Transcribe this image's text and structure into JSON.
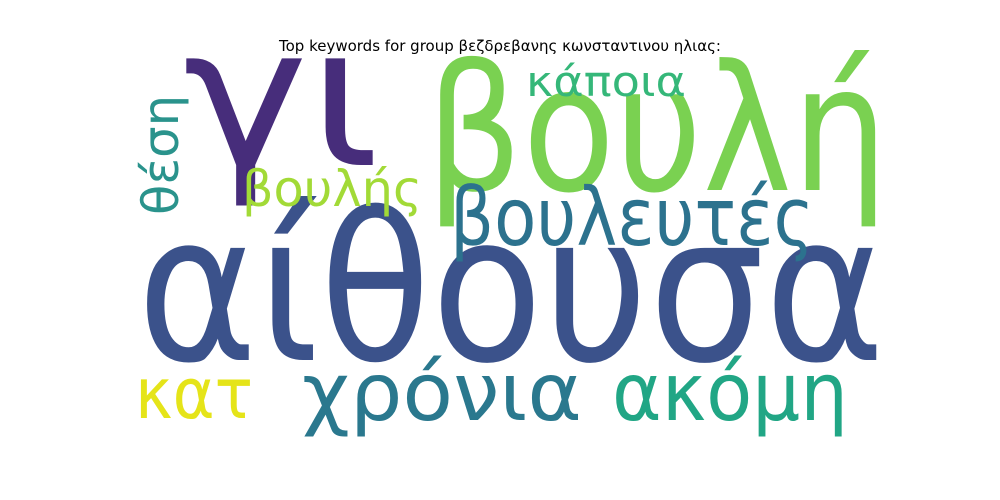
{
  "title": "Top keywords for group βεζδρεβανης κωνσταντινου ηλιας:",
  "words": [
    {
      "text": "αίθουσα",
      "color": "#3b528b"
    },
    {
      "text": "βουλή",
      "color": "#7ad151"
    },
    {
      "text": "γι",
      "color": "#472d7b"
    },
    {
      "text": "βουλευτές",
      "color": "#2c728e"
    },
    {
      "text": "χρόνια",
      "color": "#2a788e"
    },
    {
      "text": "ακόμη",
      "color": "#21a685"
    },
    {
      "text": "κατ",
      "color": "#e5e419"
    },
    {
      "text": "κάποια",
      "color": "#35b779"
    },
    {
      "text": "βουλής",
      "color": "#a2da37"
    },
    {
      "text": "θέση",
      "color": "#2a938c"
    }
  ]
}
